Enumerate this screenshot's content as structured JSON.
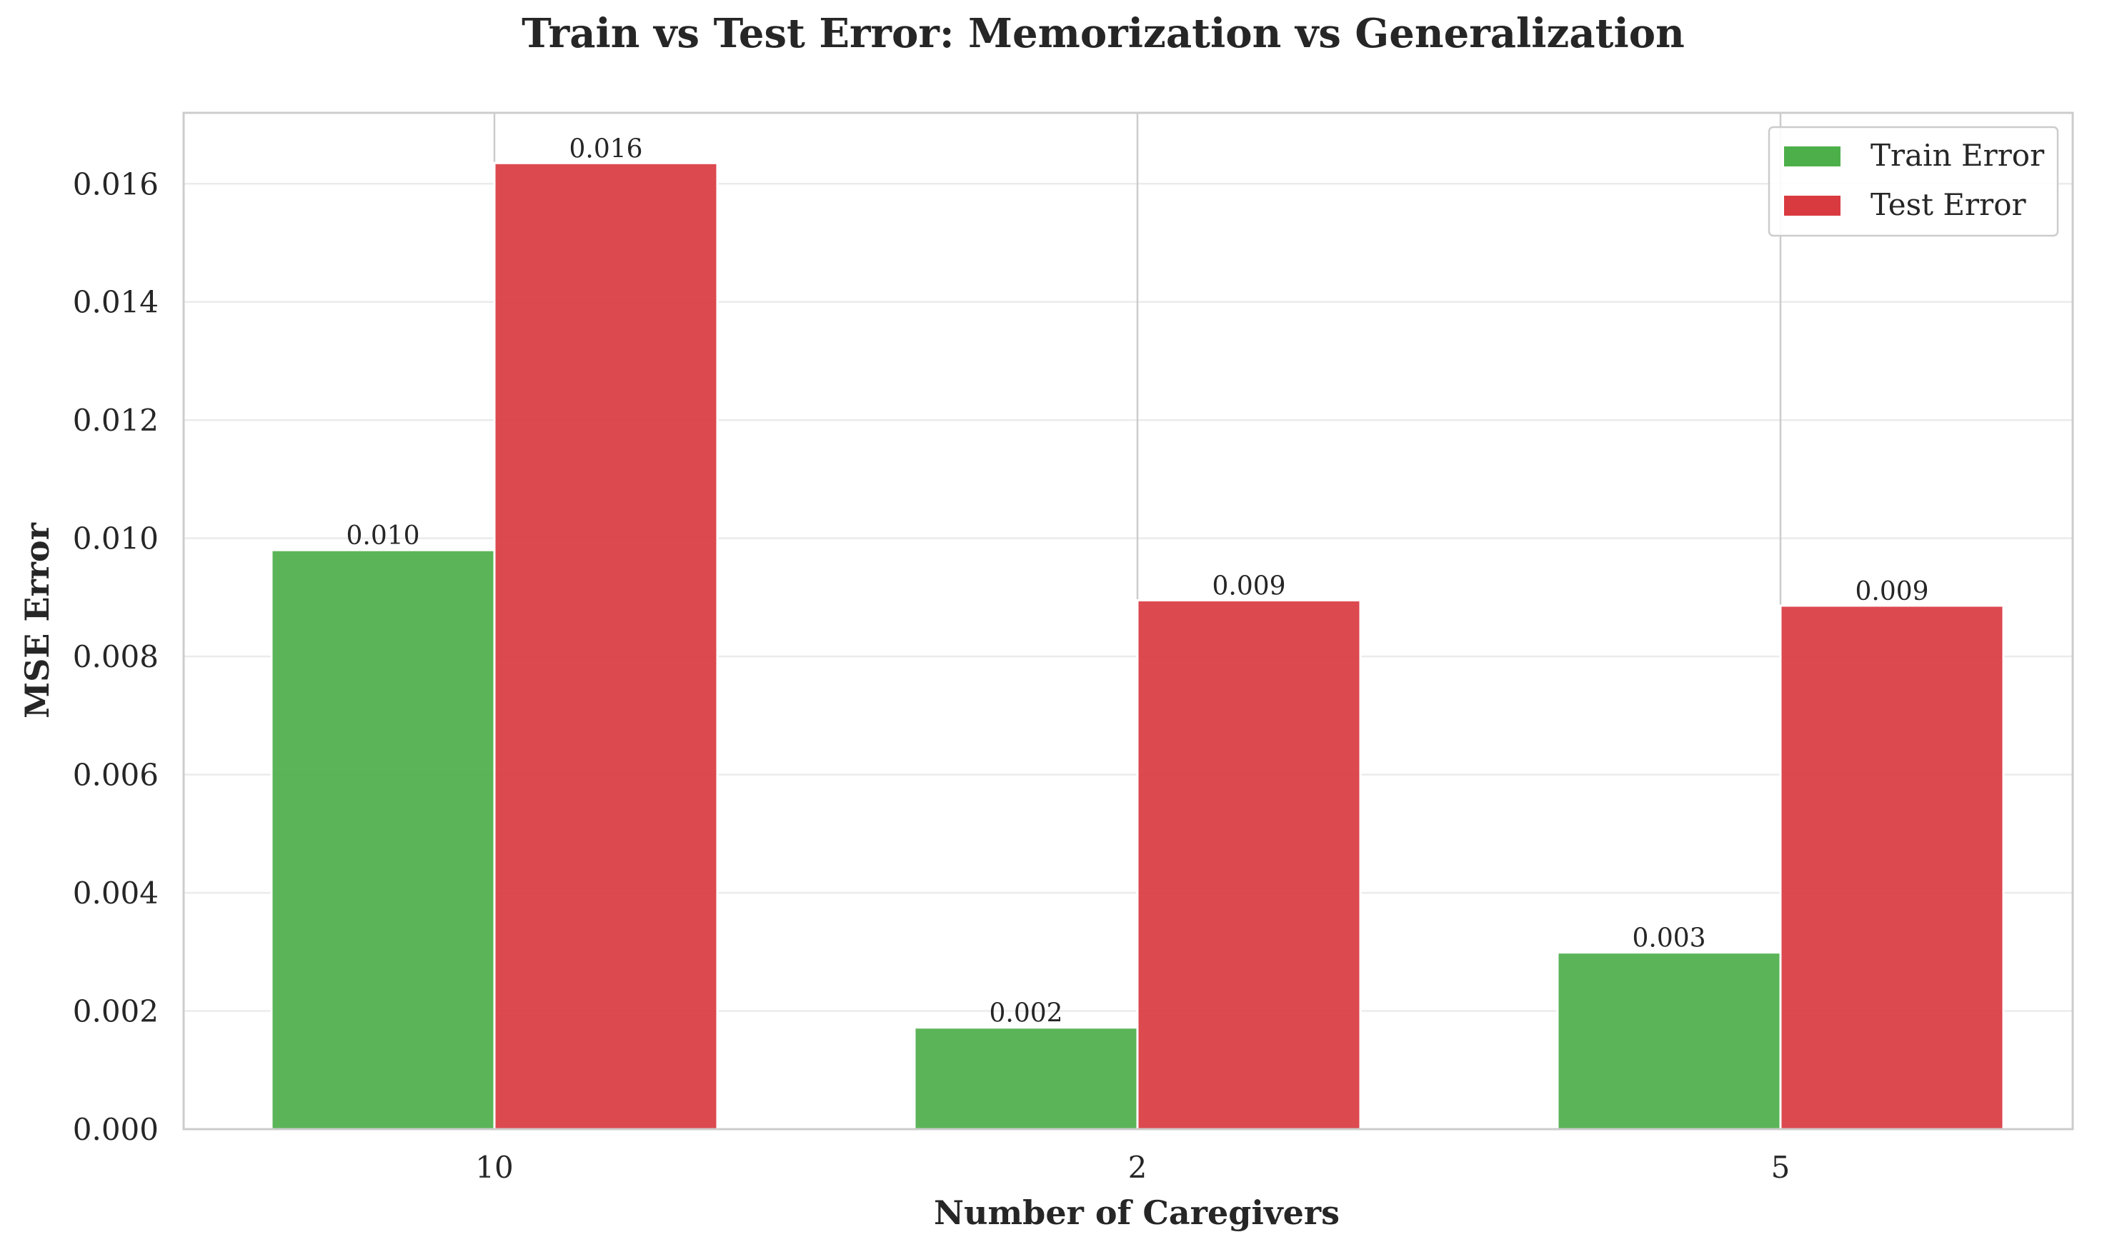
{
  "chart_data": {
    "type": "bar",
    "title": "Train vs Test Error: Memorization vs Generalization",
    "xlabel": "Number of Caregivers",
    "ylabel": "MSE Error",
    "categories": [
      "10",
      "2",
      "5"
    ],
    "series": [
      {
        "name": "Train Error",
        "color": "#4daf4a",
        "values": [
          0.0098,
          0.00172,
          0.00299
        ],
        "labels": [
          "0.010",
          "0.002",
          "0.003"
        ]
      },
      {
        "name": "Test Error",
        "color": "#d93a40",
        "values": [
          0.01635,
          0.00895,
          0.00886
        ],
        "labels": [
          "0.016",
          "0.009",
          "0.009"
        ]
      }
    ],
    "ylim": [
      0,
      0.0172
    ],
    "yticks": [
      0,
      0.002,
      0.004,
      0.006,
      0.008,
      0.01,
      0.012,
      0.014,
      0.016
    ],
    "ytick_labels": [
      "0.000",
      "0.002",
      "0.004",
      "0.006",
      "0.008",
      "0.010",
      "0.012",
      "0.014",
      "0.016"
    ],
    "grid": true,
    "legend_position": "top-right"
  }
}
